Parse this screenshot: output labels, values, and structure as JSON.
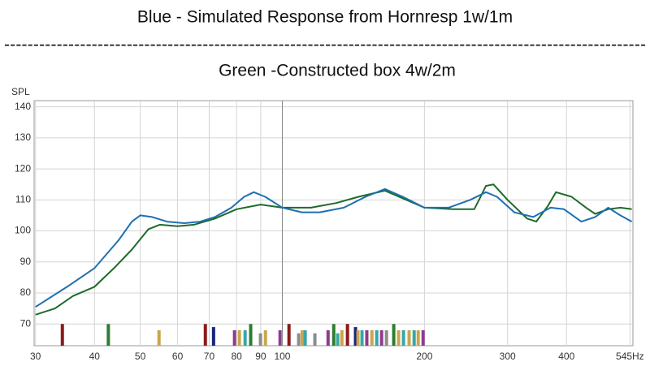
{
  "chart_data": {
    "type": "line",
    "title": "Blue - Simulated Response from Hornresp 1w/1m",
    "separator": "--------------------------------------------------------------------------------------------------------------",
    "subtitle": "Green -Constructed box 4w/2m",
    "y_label": "SPL",
    "log_x": true,
    "grid": true,
    "xlim": [
      29.8,
      553
    ],
    "ylim": [
      63,
      142
    ],
    "xticks": [
      30,
      40,
      50,
      60,
      70,
      80,
      90,
      100,
      200,
      300,
      400,
      {
        "value": 545,
        "label": "545Hz"
      }
    ],
    "yticks": [
      70,
      80,
      90,
      100,
      110,
      120,
      130,
      140
    ],
    "series": [
      {
        "color": "#1f6fb0",
        "x": [
          30,
          35,
          40,
          45,
          48,
          50,
          53,
          57,
          62,
          67,
          72,
          78,
          83,
          87,
          92,
          100,
          110,
          120,
          135,
          150,
          165,
          180,
          200,
          225,
          250,
          270,
          285,
          310,
          340,
          370,
          395,
          430,
          460,
          490,
          520,
          550
        ],
        "values": [
          75.5,
          82,
          88,
          97,
          103,
          105,
          104.5,
          103,
          102.5,
          103,
          104.5,
          107.5,
          111,
          112.5,
          111,
          107.5,
          106,
          106,
          107.5,
          111,
          113.5,
          111,
          107.5,
          107.5,
          110,
          112.5,
          111,
          106,
          104.5,
          107.5,
          107,
          103,
          104.5,
          107.5,
          105,
          103
        ]
      },
      {
        "color": "#1e6b2a",
        "x": [
          30,
          33,
          36,
          40,
          44,
          48,
          52,
          55,
          60,
          65,
          72,
          80,
          90,
          100,
          115,
          130,
          145,
          165,
          180,
          200,
          230,
          255,
          262,
          270,
          280,
          300,
          330,
          345,
          365,
          380,
          410,
          440,
          460,
          490,
          520,
          550
        ],
        "values": [
          73,
          75,
          79,
          82,
          88,
          94,
          100.5,
          102,
          101.5,
          102,
          104,
          107,
          108.5,
          107.5,
          107.5,
          109,
          111,
          113,
          110.5,
          107.5,
          107,
          107,
          110.5,
          114.5,
          115,
          110,
          104,
          103,
          108,
          112.5,
          111,
          107.5,
          105.5,
          107,
          107.5,
          107
        ]
      }
    ],
    "bars": {
      "x": [
        34.2,
        42.8,
        54.8,
        68.7,
        71.5,
        79.2,
        81.1,
        83.4,
        85.7,
        89.9,
        92.1,
        98.9,
        103.3,
        108.3,
        110.2,
        111.8,
        117.2,
        125,
        128.5,
        131,
        133.7,
        137.4,
        142.9,
        144.6,
        147.5,
        151,
        154.8,
        158.5,
        162.3,
        166.2,
        172.2,
        176.3,
        180.6,
        185.6,
        190.2,
        194,
        198.7
      ],
      "values": [
        70,
        70,
        68,
        70,
        69,
        68,
        68,
        68,
        70,
        67,
        68,
        68,
        70,
        67,
        68,
        68,
        67,
        68,
        70,
        67,
        68,
        70,
        69,
        68,
        68,
        68,
        68,
        68,
        68,
        68,
        70,
        68,
        68,
        68,
        68,
        68,
        68
      ],
      "colors": [
        "#8b1a1a",
        "#2e7d32",
        "#c9a64b",
        "#8b1a1a",
        "#1a237e",
        "#8e3b8e",
        "#c9a64b",
        "#3aa6a6",
        "#2e7d32",
        "#8c8c8c",
        "#c9a64b",
        "#8e3b8e",
        "#8b1a1a",
        "#8c8c8c",
        "#c9a64b",
        "#3aa6a6",
        "#8c8c8c",
        "#8e3b8e",
        "#2e7d32",
        "#3aa6a6",
        "#c9a64b",
        "#8b1a1a",
        "#1a237e",
        "#c9a64b",
        "#3aa6a6",
        "#8e3b8e",
        "#c9a64b",
        "#3aa6a6",
        "#8e3b8e",
        "#8c8c8c",
        "#2e7d32",
        "#c9a64b",
        "#3aa6a6",
        "#c9a64b",
        "#3aa6a6",
        "#c9a64b",
        "#8e3b8e"
      ]
    }
  }
}
